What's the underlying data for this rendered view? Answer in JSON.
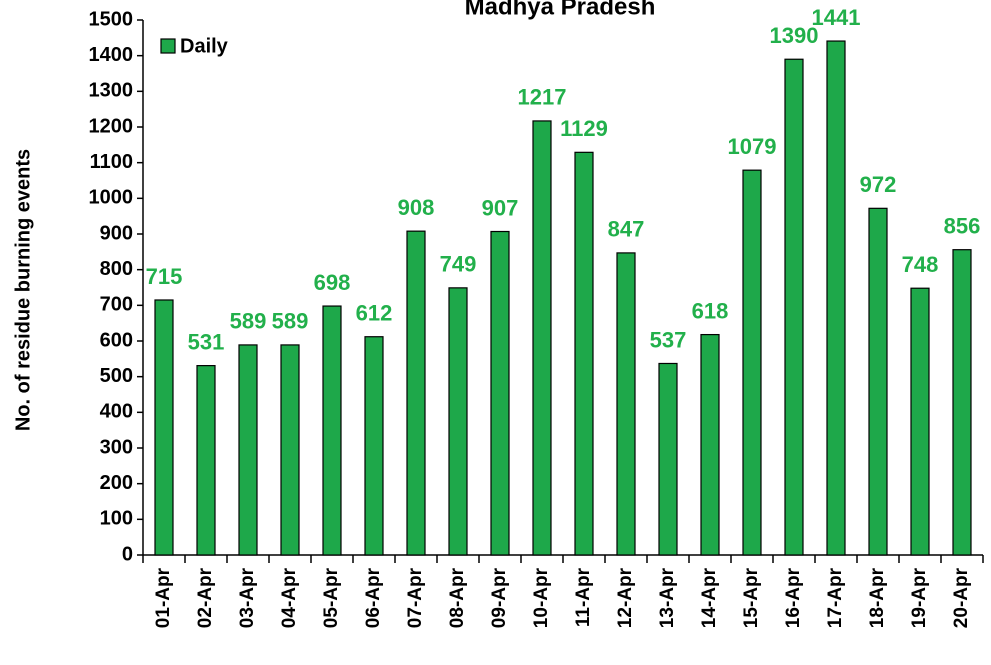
{
  "chart_data": {
    "type": "bar",
    "title": "Madhya Pradesh",
    "y_label": "No. of residue burning events",
    "categories": [
      "01-Apr",
      "02-Apr",
      "03-Apr",
      "04-Apr",
      "05-Apr",
      "06-Apr",
      "07-Apr",
      "08-Apr",
      "09-Apr",
      "10-Apr",
      "11-Apr",
      "12-Apr",
      "13-Apr",
      "14-Apr",
      "15-Apr",
      "16-Apr",
      "17-Apr",
      "18-Apr",
      "19-Apr",
      "20-Apr"
    ],
    "series": [
      {
        "name": "Daily",
        "color": "#1ea84a",
        "values": [
          715,
          531,
          589,
          589,
          698,
          612,
          908,
          749,
          907,
          1217,
          1129,
          847,
          537,
          618,
          1079,
          1390,
          1441,
          972,
          748,
          856
        ]
      }
    ],
    "label_color": "#22b04b",
    "ylim": [
      0,
      1500
    ],
    "yticks": [
      0,
      100,
      200,
      300,
      400,
      500,
      600,
      700,
      800,
      900,
      1000,
      1100,
      1200,
      1300,
      1400,
      1500
    ],
    "legend": "upper left"
  }
}
